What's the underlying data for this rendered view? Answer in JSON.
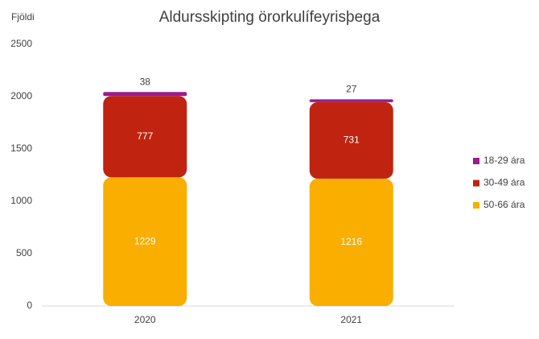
{
  "chart_data": {
    "type": "stacked_bar",
    "title": "Aldursskipting örorkulífeyrisþega",
    "y_label": "Fjöldi",
    "categories": [
      "2020",
      "2021"
    ],
    "series": [
      {
        "name": "50-66 ára",
        "color": "#f9ae00",
        "values": [
          1229,
          1216
        ]
      },
      {
        "name": "30-49 ára",
        "color": "#c0230f",
        "values": [
          777,
          731
        ]
      },
      {
        "name": "18-29 ára",
        "color": "#9b1b8e",
        "values": [
          38,
          27
        ]
      }
    ],
    "ylim": [
      0,
      2500
    ],
    "yticks": [
      0,
      500,
      1000,
      1500,
      2000,
      2500
    ],
    "grid": false,
    "legend": "right"
  }
}
